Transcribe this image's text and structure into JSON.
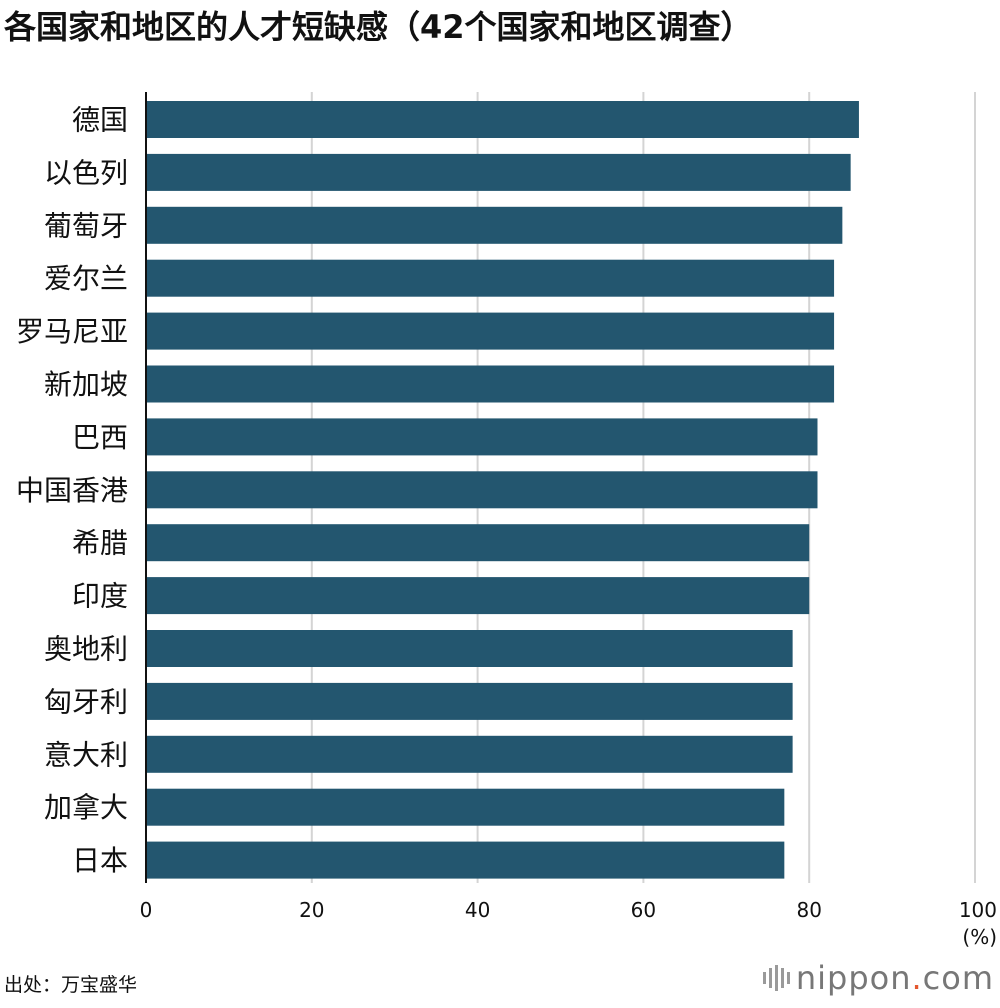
{
  "title": "各国家和地区的人才短缺感（42个国家和地区调查）",
  "source": "出处：万宝盛华",
  "brand": {
    "name": "nippon",
    "dot": ".",
    "suffix": "com",
    "icon": "nippon-bars-icon"
  },
  "chart_data": {
    "type": "bar",
    "orientation": "horizontal",
    "categories": [
      "德国",
      "以色列",
      "葡萄牙",
      "爱尔兰",
      "罗马尼亚",
      "新加坡",
      "巴西",
      "中国香港",
      "希腊",
      "印度",
      "奥地利",
      "匈牙利",
      "意大利",
      "加拿大",
      "日本"
    ],
    "values": [
      86,
      85,
      84,
      83,
      83,
      83,
      81,
      81,
      80,
      80,
      78,
      78,
      78,
      77,
      77
    ],
    "xlim": [
      0,
      100
    ],
    "xticks": [
      0,
      20,
      40,
      60,
      80,
      100
    ],
    "unit": "(%)",
    "grid": true,
    "bar_color": "#23566f",
    "grid_color": "#d4d4d4"
  }
}
